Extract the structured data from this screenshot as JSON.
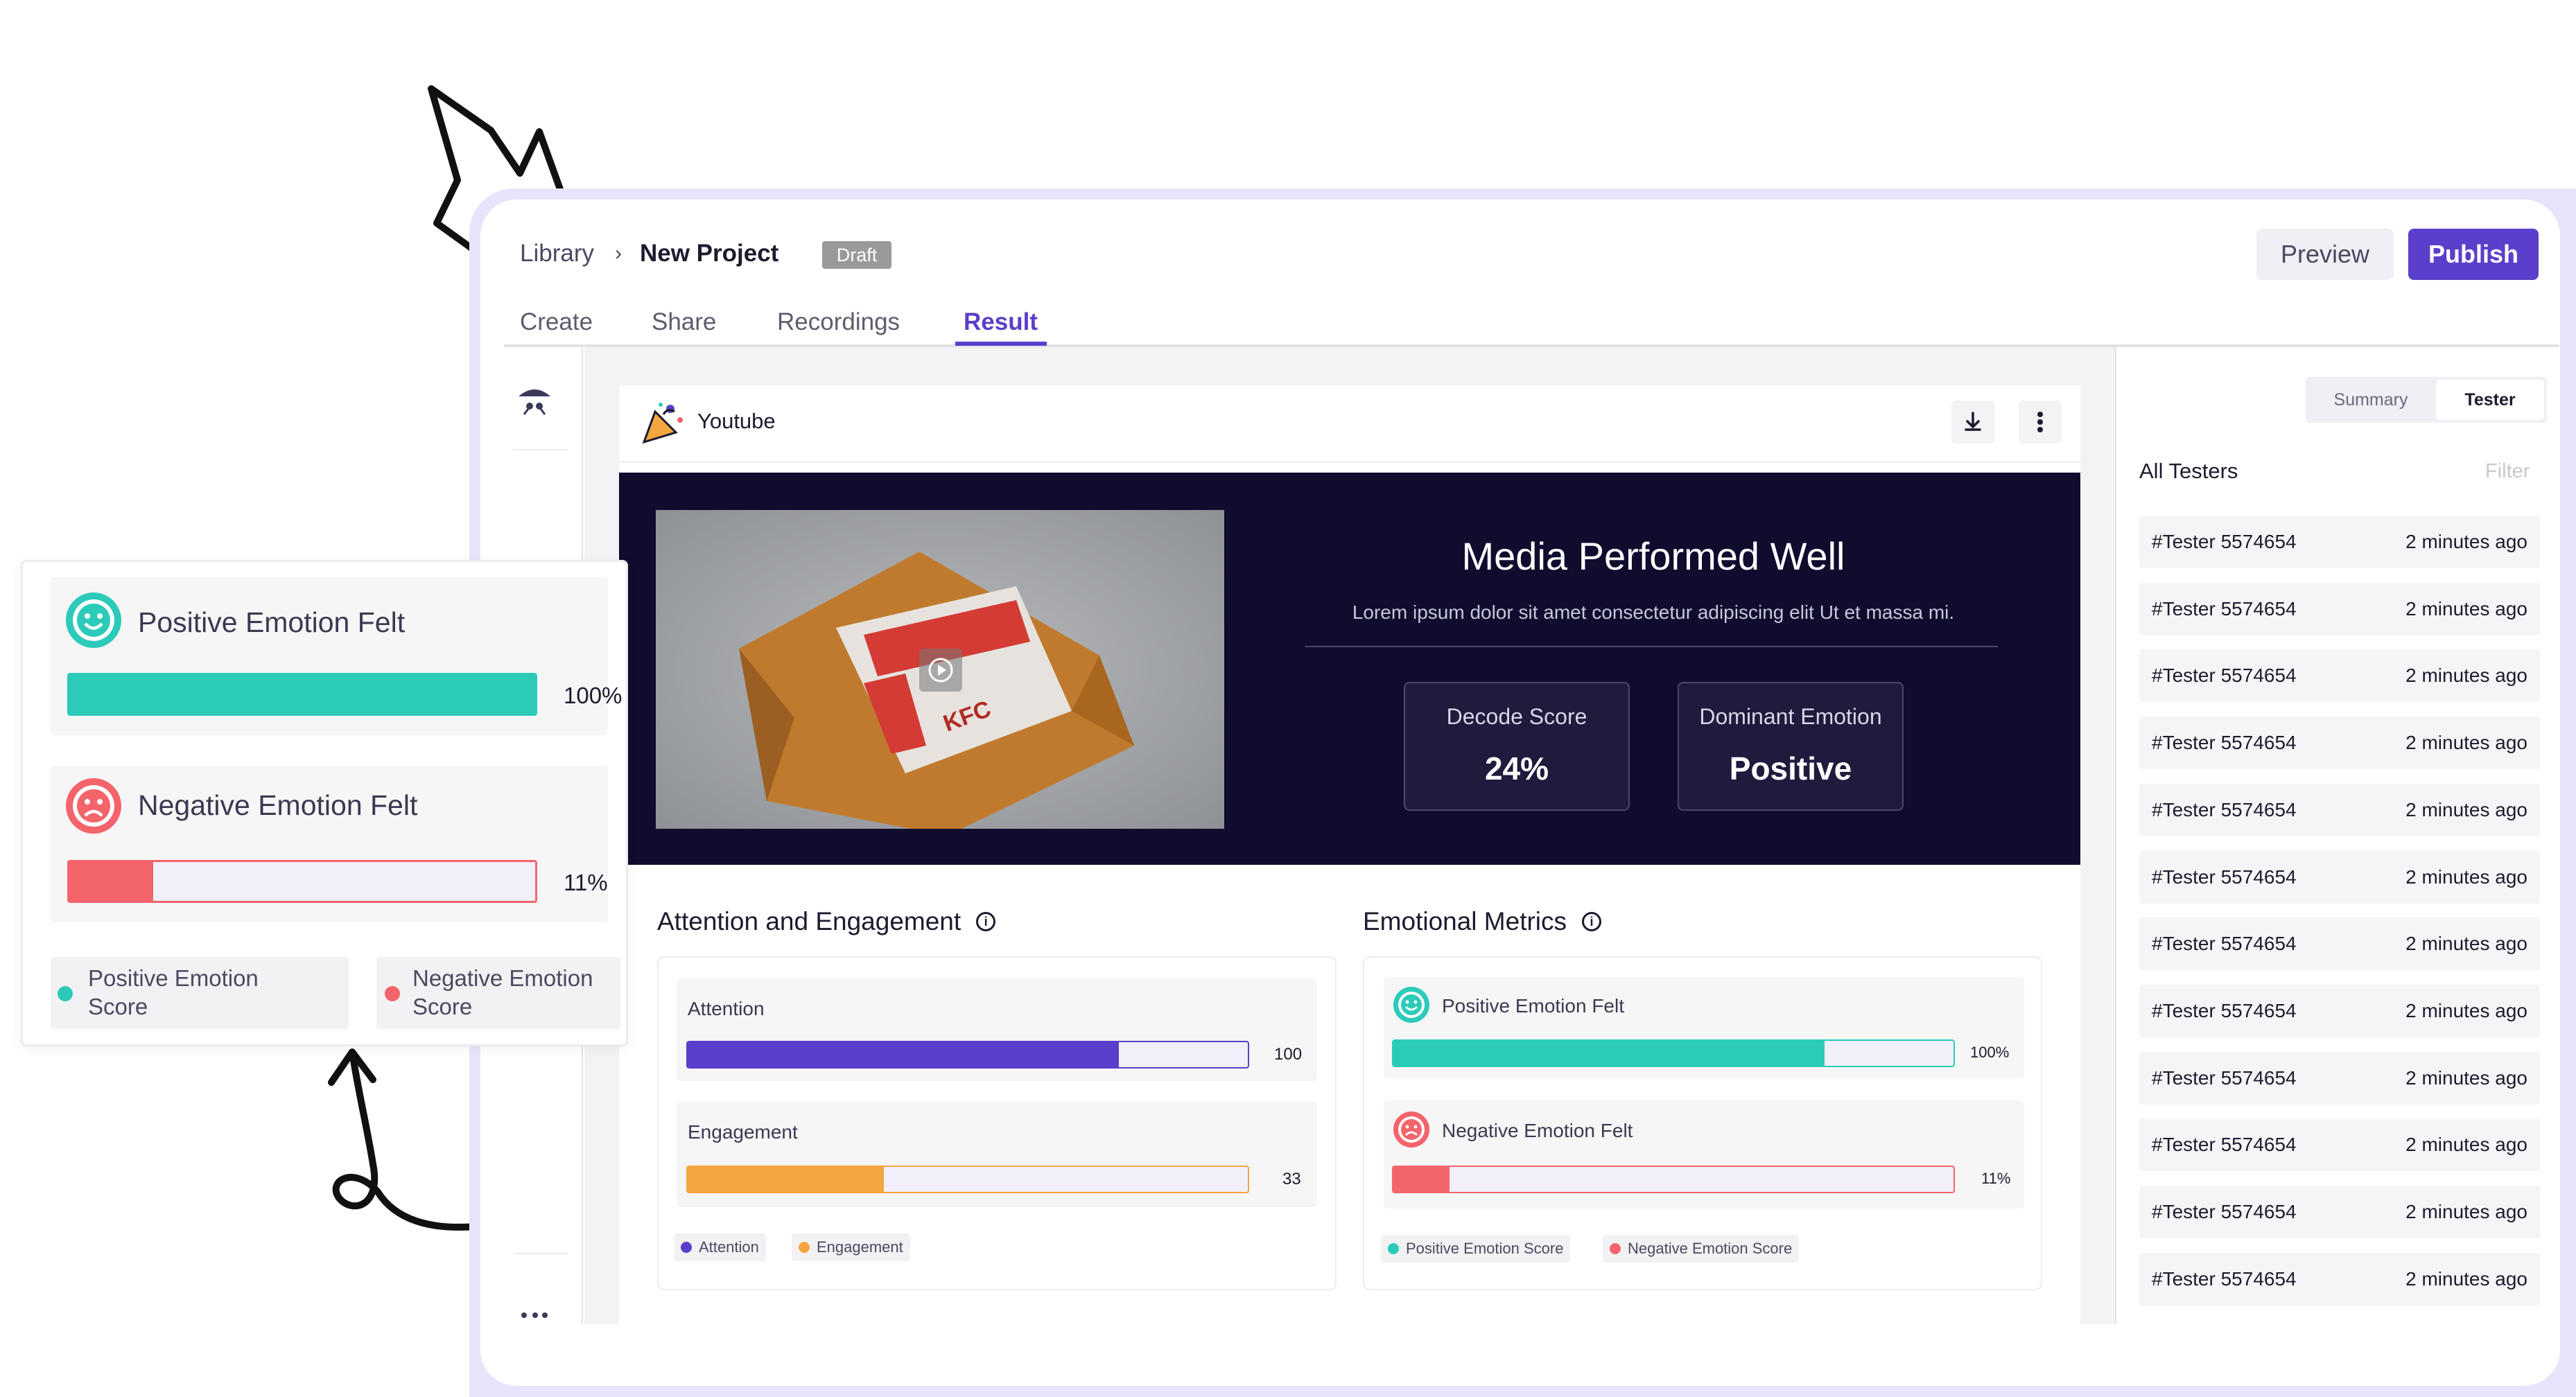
{
  "colors": {
    "accent": "#5b3ecb",
    "attention": "#5b3ecb",
    "engagement": "#f4a640",
    "positive": "#2ccbb9",
    "negative": "#f4646b",
    "hero_bg": "#0f0c2e"
  },
  "header": {
    "breadcrumb_root": "Library",
    "breadcrumb_sep": ">",
    "project_name": "New Project",
    "status_badge": "Draft",
    "preview_label": "Preview",
    "publish_label": "Publish"
  },
  "tabs": [
    {
      "label": "Create",
      "active": false
    },
    {
      "label": "Share",
      "active": false
    },
    {
      "label": "Recordings",
      "active": false
    },
    {
      "label": "Result",
      "active": true
    }
  ],
  "media": {
    "source_name": "Youtube",
    "thumbnail_text": "KFC",
    "icons": [
      "download-icon",
      "more-vertical-icon",
      "play-icon"
    ]
  },
  "hero": {
    "title": "Media Performed Well",
    "subtitle": "Lorem ipsum dolor sit amet consectetur adipiscing elit Ut et massa mi.",
    "decode_label": "Decode Score",
    "decode_value": "24%",
    "emotion_label": "Dominant Emotion",
    "emotion_value": "Positive"
  },
  "attention_section": {
    "title": "Attention and Engagement",
    "metrics": [
      {
        "label": "Attention",
        "value": 100,
        "display": "100",
        "fill": 0.77
      },
      {
        "label": "Engagement",
        "value": 33,
        "display": "33",
        "fill": 0.35
      }
    ],
    "legend": [
      "Attention",
      "Engagement"
    ]
  },
  "emotion_section": {
    "title": "Emotional Metrics",
    "metrics": [
      {
        "label": "Positive Emotion Felt",
        "display": "100%",
        "fill": 0.77
      },
      {
        "label": "Negative Emotion Felt",
        "display": "11%",
        "fill": 0.1
      }
    ],
    "legend": [
      "Positive Emotion Score",
      "Negative Emotion Score"
    ]
  },
  "sidebar": {
    "segment_summary": "Summary",
    "segment_tester": "Tester",
    "list_title": "All Testers",
    "filter_label": "Filter",
    "testers": [
      {
        "name": "#Tester 5574654",
        "time": "2 minutes ago"
      },
      {
        "name": "#Tester 5574654",
        "time": "2 minutes ago"
      },
      {
        "name": "#Tester 5574654",
        "time": "2 minutes ago"
      },
      {
        "name": "#Tester 5574654",
        "time": "2 minutes ago"
      },
      {
        "name": "#Tester 5574654",
        "time": "2 minutes ago"
      },
      {
        "name": "#Tester 5574654",
        "time": "2 minutes ago"
      },
      {
        "name": "#Tester 5574654",
        "time": "2 minutes ago"
      },
      {
        "name": "#Tester 5574654",
        "time": "2 minutes ago"
      },
      {
        "name": "#Tester 5574654",
        "time": "2 minutes ago"
      },
      {
        "name": "#Tester 5574654",
        "time": "2 minutes ago"
      },
      {
        "name": "#Tester 5574654",
        "time": "2 minutes ago"
      },
      {
        "name": "#Tester 5574654",
        "time": "2 minutes ago"
      }
    ]
  },
  "popup": {
    "positive_label": "Positive Emotion Felt",
    "positive_value": "100%",
    "positive_fill": 1.0,
    "negative_label": "Negative Emotion Felt",
    "negative_value": "11%",
    "negative_fill": 0.18,
    "legend_positive": "Positive Emotion Score",
    "legend_negative": "Negative Emotion Score"
  }
}
